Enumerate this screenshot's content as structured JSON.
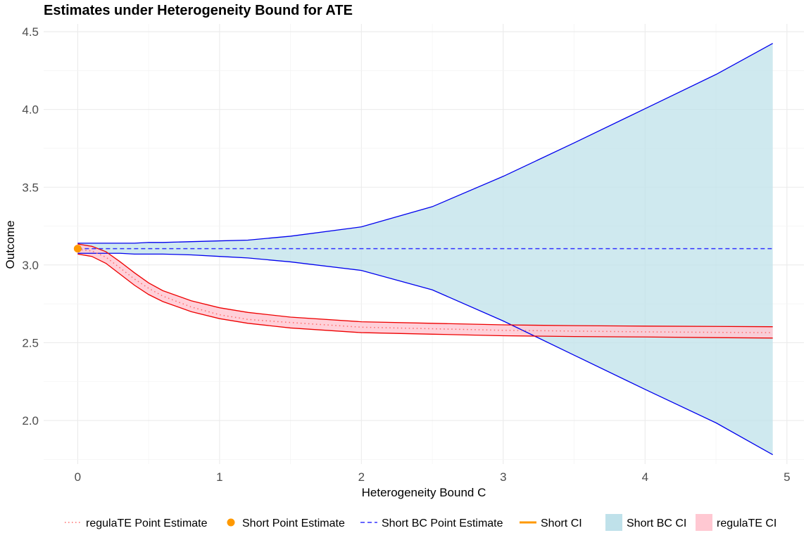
{
  "chart_data": {
    "type": "line",
    "title": "Estimates under Heterogeneity Bound for ATE",
    "xlabel": "Heterogeneity Bound C",
    "ylabel": "Outcome",
    "xlim": [
      -0.24,
      5.12
    ],
    "ylim": [
      1.72,
      4.55
    ],
    "x_ticks": [
      0,
      1,
      2,
      3,
      4,
      5
    ],
    "x_tick_labels": [
      "0",
      "1",
      "2",
      "3",
      "4",
      "5"
    ],
    "y_ticks": [
      2.0,
      2.5,
      3.0,
      3.5,
      4.0,
      4.5
    ],
    "y_tick_labels": [
      "2.0",
      "2.5",
      "3.0",
      "3.5",
      "4.0",
      "4.5"
    ],
    "grid": true,
    "legend_position": "bottom",
    "x": [
      0,
      0.1,
      0.2,
      0.3,
      0.4,
      0.5,
      0.6,
      0.8,
      1.0,
      1.2,
      1.5,
      2.0,
      2.5,
      3.0,
      3.5,
      4.0,
      4.5,
      4.9
    ],
    "series": [
      {
        "name": "regulaTE Point Estimate",
        "style": "dotted",
        "color": "#ff6b6b",
        "values": [
          3.1,
          3.09,
          3.05,
          2.98,
          2.91,
          2.85,
          2.8,
          2.73,
          2.68,
          2.65,
          2.63,
          2.6,
          2.59,
          2.58,
          2.575,
          2.57,
          2.567,
          2.565
        ]
      },
      {
        "name": "Short BC Point Estimate",
        "style": "dashed",
        "color": "#3333ff",
        "values": [
          3.105,
          3.105,
          3.105,
          3.105,
          3.105,
          3.105,
          3.105,
          3.105,
          3.105,
          3.105,
          3.105,
          3.105,
          3.105,
          3.105,
          3.105,
          3.105,
          3.105,
          3.105
        ]
      }
    ],
    "bands": [
      {
        "name": "Short BC CI",
        "fill": "#bfe1ea",
        "line_color": "#0000ee",
        "upper": [
          3.14,
          3.14,
          3.14,
          3.14,
          3.14,
          3.145,
          3.145,
          3.15,
          3.155,
          3.16,
          3.185,
          3.245,
          3.375,
          3.57,
          3.785,
          4.005,
          4.225,
          4.425
        ],
        "lower": [
          3.075,
          3.075,
          3.075,
          3.075,
          3.07,
          3.07,
          3.07,
          3.065,
          3.055,
          3.045,
          3.02,
          2.965,
          2.84,
          2.64,
          2.42,
          2.2,
          1.985,
          1.78
        ]
      },
      {
        "name": "regulaTE CI",
        "fill": "#ffc8d2",
        "line_color": "#ee0000",
        "upper": [
          3.135,
          3.12,
          3.085,
          3.02,
          2.95,
          2.885,
          2.835,
          2.77,
          2.725,
          2.695,
          2.665,
          2.635,
          2.625,
          2.615,
          2.61,
          2.607,
          2.605,
          2.603
        ],
        "lower": [
          3.07,
          3.055,
          3.01,
          2.94,
          2.87,
          2.81,
          2.765,
          2.7,
          2.655,
          2.625,
          2.595,
          2.565,
          2.555,
          2.545,
          2.54,
          2.537,
          2.533,
          2.53
        ]
      }
    ],
    "points": [
      {
        "name": "Short Point Estimate",
        "color": "#ff9900",
        "x": 0,
        "y": 3.105
      }
    ],
    "legend": [
      {
        "label": "regulaTE Point Estimate",
        "kind": "dotted-line",
        "color": "#ff6b6b"
      },
      {
        "label": "Short Point Estimate",
        "kind": "point",
        "color": "#ff9900"
      },
      {
        "label": "Short BC Point Estimate",
        "kind": "dashed-line",
        "color": "#3333ff"
      },
      {
        "label": "Short CI",
        "kind": "line",
        "color": "#ff9900"
      },
      {
        "label": "Short BC CI",
        "kind": "fill",
        "color": "#bfe1ea"
      },
      {
        "label": "regulaTE CI",
        "kind": "fill",
        "color": "#ffc8d2"
      }
    ]
  }
}
